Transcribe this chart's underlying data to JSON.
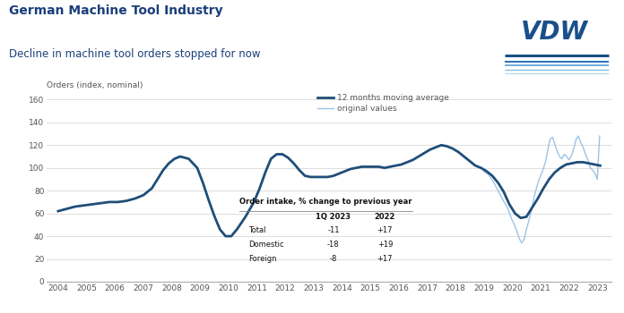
{
  "title": "German Machine Tool Industry",
  "subtitle": "Decline in machine tool orders stopped for now",
  "ylabel": "Orders (index, nominal)",
  "ylim": [
    0,
    165
  ],
  "yticks": [
    0,
    20,
    40,
    60,
    80,
    100,
    120,
    140,
    160
  ],
  "bg_color": "#ffffff",
  "plot_bg": "#ffffff",
  "moving_avg_color": "#1f4e79",
  "original_color": "#9dc3e6",
  "moving_avg_lw": 2.0,
  "original_lw": 1.0,
  "table_title": "Order intake, % change to previous year",
  "table_rows": [
    "Total",
    "Domestic",
    "Foreign"
  ],
  "table_col1_header": "1Q 2023",
  "table_col2_header": "2022",
  "table_col1_vals": [
    "-11",
    "-18",
    "-8"
  ],
  "table_col2_vals": [
    "+17",
    "+19",
    "+17"
  ],
  "years": [
    2004,
    2005,
    2006,
    2007,
    2008,
    2009,
    2010,
    2011,
    2012,
    2013,
    2014,
    2015,
    2016,
    2017,
    2018,
    2019,
    2020,
    2021,
    2022,
    2023
  ],
  "moving_avg_x": [
    2004.0,
    2004.3,
    2004.6,
    2004.9,
    2005.2,
    2005.5,
    2005.8,
    2006.1,
    2006.4,
    2006.7,
    2007.0,
    2007.3,
    2007.5,
    2007.7,
    2007.9,
    2008.1,
    2008.3,
    2008.6,
    2008.9,
    2009.1,
    2009.3,
    2009.5,
    2009.7,
    2009.9,
    2010.1,
    2010.3,
    2010.6,
    2010.9,
    2011.1,
    2011.3,
    2011.5,
    2011.7,
    2011.9,
    2012.1,
    2012.3,
    2012.5,
    2012.7,
    2012.9,
    2013.1,
    2013.3,
    2013.5,
    2013.7,
    2013.9,
    2014.1,
    2014.3,
    2014.5,
    2014.7,
    2014.9,
    2015.1,
    2015.3,
    2015.5,
    2015.7,
    2015.9,
    2016.1,
    2016.3,
    2016.5,
    2016.7,
    2016.9,
    2017.1,
    2017.3,
    2017.5,
    2017.7,
    2017.9,
    2018.1,
    2018.3,
    2018.5,
    2018.7,
    2018.9,
    2019.1,
    2019.3,
    2019.5,
    2019.7,
    2019.9,
    2020.1,
    2020.3,
    2020.5,
    2020.7,
    2020.9,
    2021.1,
    2021.3,
    2021.5,
    2021.7,
    2021.9,
    2022.1,
    2022.3,
    2022.5,
    2022.7,
    2022.9,
    2023.1
  ],
  "moving_avg_y": [
    62,
    64,
    66,
    67,
    68,
    69,
    70,
    70,
    71,
    73,
    76,
    82,
    90,
    98,
    104,
    108,
    110,
    108,
    100,
    87,
    72,
    58,
    46,
    40,
    40,
    46,
    57,
    70,
    82,
    96,
    108,
    112,
    112,
    109,
    104,
    98,
    93,
    92,
    92,
    92,
    92,
    93,
    95,
    97,
    99,
    100,
    101,
    101,
    101,
    101,
    100,
    101,
    102,
    103,
    105,
    107,
    110,
    113,
    116,
    118,
    120,
    119,
    117,
    114,
    110,
    106,
    102,
    100,
    97,
    93,
    87,
    79,
    68,
    60,
    56,
    57,
    65,
    73,
    82,
    90,
    96,
    100,
    103,
    104,
    105,
    105,
    104,
    103,
    102
  ],
  "original_x": [
    2019.0,
    2019.17,
    2019.33,
    2019.5,
    2019.67,
    2019.83,
    2020.0,
    2020.08,
    2020.17,
    2020.25,
    2020.33,
    2020.42,
    2020.5,
    2020.58,
    2020.67,
    2020.75,
    2020.83,
    2020.92,
    2021.0,
    2021.08,
    2021.17,
    2021.25,
    2021.33,
    2021.42,
    2021.5,
    2021.58,
    2021.67,
    2021.75,
    2021.83,
    2021.92,
    2022.0,
    2022.08,
    2022.17,
    2022.25,
    2022.33,
    2022.42,
    2022.5,
    2022.58,
    2022.67,
    2022.75,
    2022.83,
    2022.92,
    2023.0,
    2023.08
  ],
  "original_y": [
    97,
    94,
    88,
    80,
    72,
    65,
    54,
    50,
    44,
    38,
    34,
    37,
    46,
    53,
    62,
    72,
    80,
    88,
    93,
    98,
    105,
    115,
    125,
    127,
    121,
    115,
    110,
    108,
    112,
    110,
    107,
    110,
    117,
    125,
    128,
    122,
    118,
    112,
    107,
    100,
    98,
    95,
    90,
    128
  ]
}
